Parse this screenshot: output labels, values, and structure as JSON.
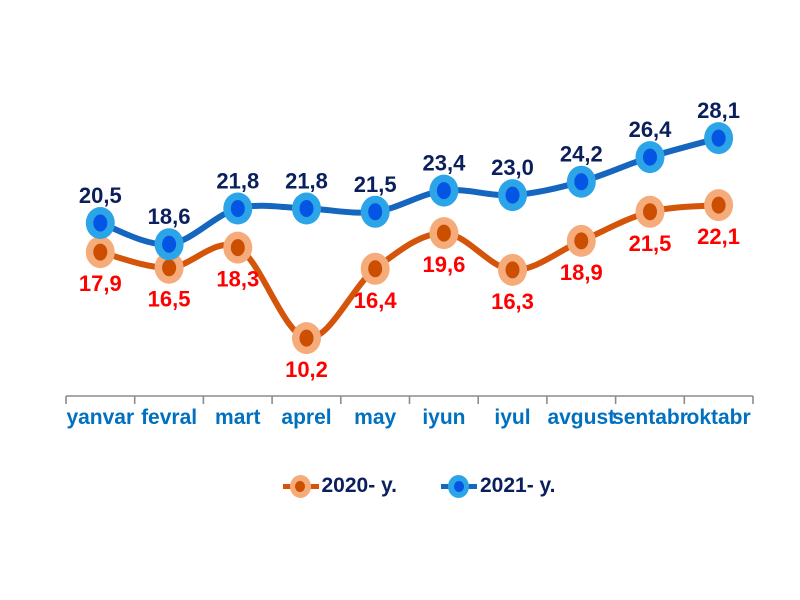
{
  "chart_data": {
    "type": "line",
    "title": "",
    "xlabel": "",
    "ylabel": "",
    "grid": false,
    "ylim": [
      5,
      33
    ],
    "legend_position": "bottom",
    "categories": [
      "yanvar",
      "fevral",
      "mart",
      "aprel",
      "may",
      "iyun",
      "iyul",
      "avgust",
      "sentabr",
      "oktabr"
    ],
    "series": [
      {
        "name": "2020- y.",
        "values": [
          17.9,
          16.5,
          18.3,
          10.2,
          16.4,
          19.6,
          16.3,
          18.9,
          21.5,
          22.1
        ],
        "labels": [
          "17,9",
          "16,5",
          "18,3",
          "10,2",
          "16,4",
          "19,6",
          "16,3",
          "18,9",
          "21,5",
          "22,1"
        ],
        "line_color": "#D4540A",
        "marker_fill": "#F5AC7A",
        "marker_dot": "#CC4E00",
        "label_color": "#FF0000",
        "label_position": "below"
      },
      {
        "name": "2021- y.",
        "values": [
          20.5,
          18.6,
          21.8,
          21.8,
          21.5,
          23.4,
          23.0,
          24.2,
          26.4,
          28.1
        ],
        "labels": [
          "20,5",
          "18,6",
          "21,8",
          "21,8",
          "21,5",
          "23,4",
          "23,0",
          "24,2",
          "26,4",
          "28,1"
        ],
        "line_color": "#1566BE",
        "marker_fill": "#2BA4E8",
        "marker_dot": "#0455E4",
        "label_color": "#0A1F5C",
        "label_position": "above"
      }
    ],
    "x_axis": {
      "label_color": "#0070C0",
      "axis_color": "#8C8C8C"
    }
  }
}
